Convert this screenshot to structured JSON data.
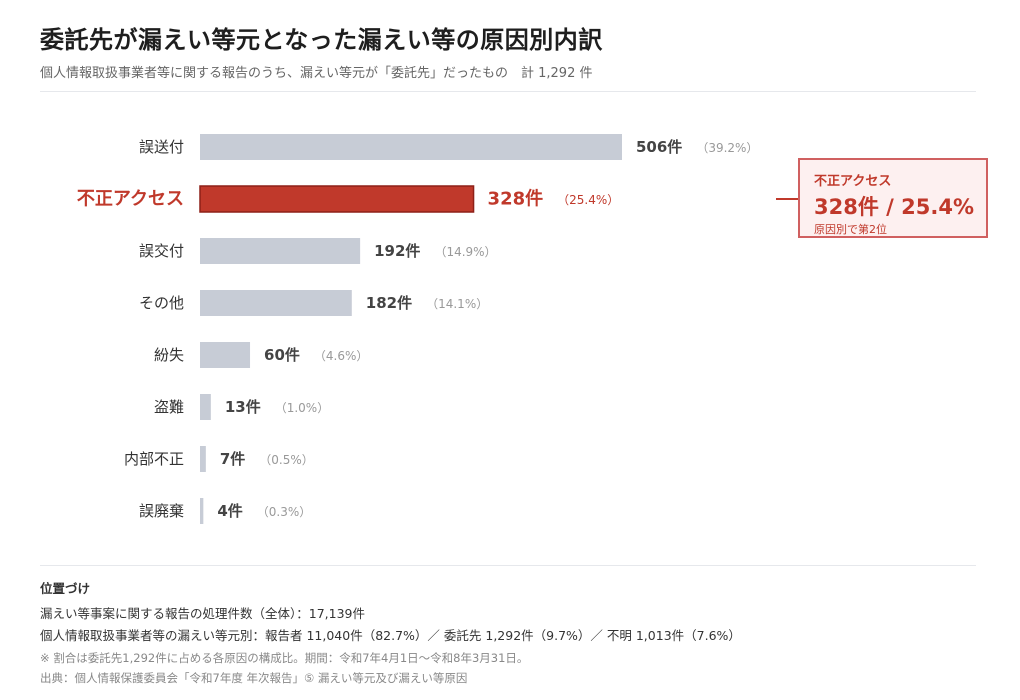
{
  "header": {
    "title": "委託先が漏えい等元となった漏えい等の原因別内訳",
    "subtitle": "個人情報取扱事業者等に関する報告のうち、漏えい等元が「委託先」だったもの　計 1,292 件"
  },
  "colors": {
    "bar_default": "#c7ccd6",
    "bar_highlight": "#c0392b",
    "highlight_text": "#c0392b"
  },
  "chart_data": {
    "type": "bar",
    "orientation": "horizontal",
    "categories": [
      "誤送付",
      "不正アクセス",
      "誤交付",
      "その他",
      "紛失",
      "盗難",
      "内部不正",
      "誤廃棄"
    ],
    "values": [
      506,
      328,
      192,
      182,
      60,
      13,
      7,
      4
    ],
    "value_labels": [
      "506件",
      "328件",
      "192件",
      "182件",
      "60件",
      "13件",
      "7件",
      "4件"
    ],
    "percent_labels": [
      "（39.2%）",
      "（25.4%）",
      "（14.9%）",
      "（14.1%）",
      "（4.6%）",
      "（1.0%）",
      "（0.5%）",
      "（0.3%）"
    ],
    "highlight_index": 1,
    "xlim": [
      0,
      540
    ],
    "grid": false
  },
  "callout": {
    "label": "不正アクセス",
    "value": "328件 / 25.4%",
    "note": "原因別で第2位"
  },
  "footer": {
    "heading": "位置づけ",
    "line1": "漏えい等事案に関する報告の処理件数（全体）：17,139件",
    "line2": "個人情報取扱事業者等の漏えい等元別：報告者 11,040件（82.7%）／ 委託先 1,292件（9.7%）／ 不明 1,013件（7.6%）"
  },
  "notes": {
    "note1": "※ 割合は委託先1,292件に占める各原因の構成比。期間：令和7年4月1日～令和8年3月31日。",
    "source": "出典：個人情報保護委員会「令和7年度 年次報告」⑤ 漏えい等元及び漏えい等原因"
  }
}
